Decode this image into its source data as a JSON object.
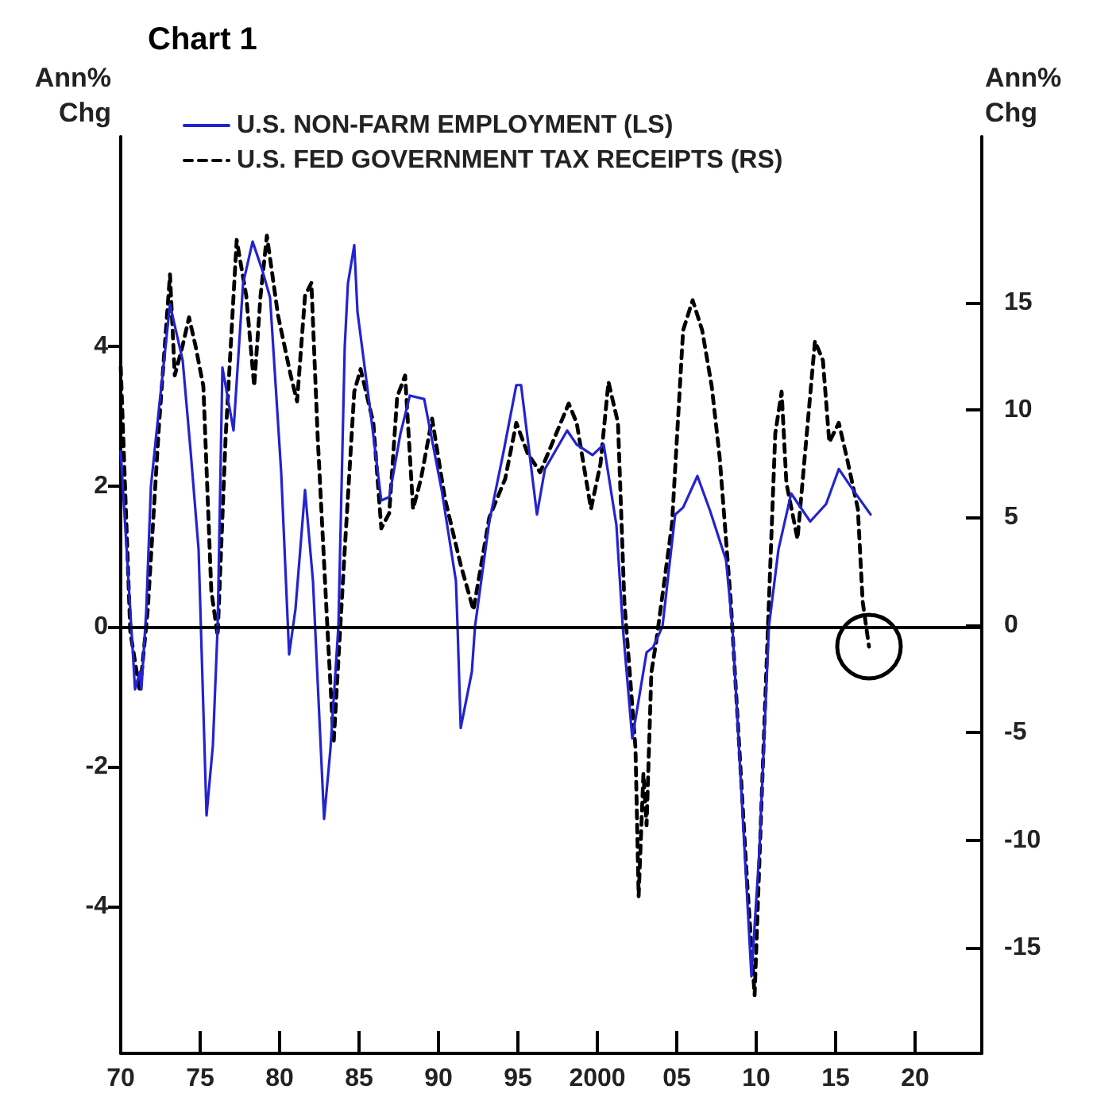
{
  "chart_data": {
    "type": "line",
    "title": "Chart 1",
    "ylabel": "Ann%\nChg",
    "y2label": "Ann%\nChg",
    "xlim": [
      1970,
      2024.2
    ],
    "xticks": [
      {
        "value": 1970,
        "label": "70"
      },
      {
        "value": 1975,
        "label": "75"
      },
      {
        "value": 1980,
        "label": "80"
      },
      {
        "value": 1985,
        "label": "85"
      },
      {
        "value": 1990,
        "label": "90"
      },
      {
        "value": 1995,
        "label": "95"
      },
      {
        "value": 2000,
        "label": "2000"
      },
      {
        "value": 2005,
        "label": "05"
      },
      {
        "value": 2010,
        "label": "10"
      },
      {
        "value": 2015,
        "label": "15"
      },
      {
        "value": 2020,
        "label": "20"
      }
    ],
    "ylim": [
      -6.1,
      7.0
    ],
    "yticks": [
      -4,
      -2,
      0,
      2,
      4
    ],
    "y2lim": [
      -19.9,
      22.7
    ],
    "y2ticks": [
      -15,
      -10,
      -5,
      0,
      5,
      10,
      15
    ],
    "grid": false,
    "legend": "top left",
    "marker": "none",
    "ref_lines": [
      {
        "axis": "y",
        "value": 0,
        "color": "#000000",
        "line_style": "solid"
      }
    ],
    "series": [
      {
        "name": "U.S. NON-FARM EMPLOYMENT (LS)",
        "color": "#2323d0",
        "line_style": "solid",
        "x": [
          1970.0,
          1970.9,
          1971.2,
          1971.3,
          1971.6,
          1971.9,
          1972.4,
          1973.1,
          1973.9,
          1974.4,
          1974.9,
          1975.4,
          1975.8,
          1976.1,
          1976.4,
          1977.1,
          1977.7,
          1978.3,
          1978.9,
          1979.4,
          1980.1,
          1980.6,
          1981.0,
          1981.6,
          1982.1,
          1982.8,
          1983.2,
          1983.7,
          1984.1,
          1984.3,
          1984.7,
          1984.9,
          1985.7,
          1986.4,
          1986.9,
          1987.6,
          1988.2,
          1989.1,
          1990.2,
          1991.1,
          1991.2,
          1991.4,
          1992.1,
          1992.3,
          1993.2,
          1994.1,
          1994.9,
          1995.2,
          1996.2,
          1996.7,
          1998.1,
          1998.7,
          1999.7,
          2000.4,
          2001.2,
          2001.6,
          2002.2,
          2003.1,
          2003.5,
          2004.1,
          2004.9,
          2005.4,
          2006.3,
          2007.1,
          2008.1,
          2008.5,
          2009.7,
          2010.2,
          2010.8,
          2011.4,
          2012.2,
          2013.4,
          2014.4,
          2015.2,
          2016.1,
          2017.2
        ],
        "values": [
          2.5,
          -0.9,
          -0.65,
          -0.9,
          0.2,
          2.0,
          3.1,
          4.6,
          3.8,
          2.5,
          1.1,
          -2.7,
          -1.7,
          0,
          3.7,
          2.8,
          4.9,
          5.5,
          5.1,
          4.7,
          2.2,
          -0.4,
          0.25,
          1.95,
          0.65,
          -2.75,
          -1.75,
          0,
          4.0,
          4.9,
          5.45,
          4.5,
          3.1,
          1.8,
          1.85,
          2.75,
          3.3,
          3.25,
          1.95,
          0.65,
          0,
          -1.45,
          -0.65,
          0,
          1.5,
          2.5,
          3.45,
          3.45,
          1.6,
          2.25,
          2.8,
          2.6,
          2.45,
          2.6,
          1.45,
          0,
          -1.6,
          -0.37,
          -0.3,
          0,
          1.6,
          1.7,
          2.15,
          1.65,
          0.95,
          0,
          -5.0,
          -3.2,
          0,
          1.1,
          1.9,
          1.5,
          1.75,
          2.25,
          1.95,
          1.6
        ]
      },
      {
        "name": "U.S. FED GOVERNMENT TAX RECEIPTS (RS)",
        "color": "#000000",
        "line_style": "dashed",
        "axis": "y2",
        "x": [
          1970.0,
          1970.6,
          1971.2,
          1971.7,
          1972.4,
          1973.1,
          1973.4,
          1973.9,
          1974.3,
          1974.7,
          1975.2,
          1975.7,
          1976.1,
          1976.6,
          1977.1,
          1977.3,
          1977.9,
          1978.4,
          1978.8,
          1979.2,
          1979.9,
          1980.7,
          1981.1,
          1981.6,
          1982.0,
          1982.4,
          1983.0,
          1983.4,
          1984.1,
          1984.7,
          1985.1,
          1985.9,
          1986.4,
          1986.9,
          1987.4,
          1987.9,
          1988.4,
          1988.9,
          1989.6,
          1990.4,
          1991.4,
          1992.2,
          1993.2,
          1994.2,
          1994.9,
          1995.6,
          1996.4,
          1998.2,
          1998.7,
          1999.6,
          2000.2,
          2000.7,
          2001.3,
          2001.7,
          2002.4,
          2002.6,
          2002.9,
          2003.1,
          2003.4,
          2003.7,
          2004.7,
          2005.4,
          2006.0,
          2006.6,
          2007.2,
          2007.7,
          2008.4,
          2009.4,
          2009.9,
          2010.4,
          2010.8,
          2011.2,
          2011.6,
          2011.9,
          2012.6,
          2013.1,
          2013.7,
          2014.2,
          2014.6,
          2015.2,
          2015.7,
          2016.4,
          2016.7,
          2017.1
        ],
        "values": [
          12.0,
          -0.3,
          -3.1,
          0.7,
          9.2,
          16.3,
          11.6,
          13.0,
          14.3,
          13.0,
          11.1,
          1.6,
          -0.5,
          8.7,
          15.3,
          17.9,
          15.3,
          11.1,
          15.3,
          18.1,
          14.4,
          11.6,
          10.4,
          15.3,
          15.9,
          8.7,
          0,
          -5.5,
          3.5,
          10.85,
          11.9,
          9.4,
          4.5,
          5.2,
          10.6,
          11.6,
          5.4,
          6.8,
          9.6,
          5.9,
          2.8,
          0.7,
          5.0,
          6.8,
          9.4,
          8.0,
          7.1,
          10.3,
          9.4,
          5.4,
          7.5,
          11.3,
          9.4,
          1.1,
          -5.7,
          -12.6,
          -6.9,
          -9.3,
          -2.2,
          -0.8,
          4.7,
          13.7,
          15.1,
          13.7,
          11.1,
          7.8,
          1.1,
          -11.6,
          -17.2,
          -6.9,
          1.1,
          8.9,
          10.85,
          6.6,
          4.0,
          8.2,
          13.2,
          12.3,
          8.5,
          9.4,
          7.8,
          5.4,
          1.1,
          -1.0
        ]
      }
    ]
  }
}
